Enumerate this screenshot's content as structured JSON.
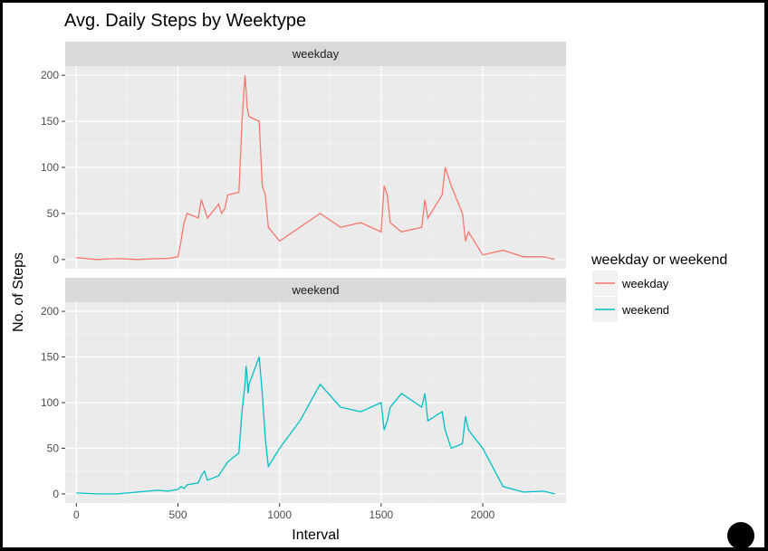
{
  "chart_data": {
    "type": "line",
    "title": "Avg. Daily Steps by Weektype",
    "xlabel": "Interval",
    "ylabel": "No. of Steps",
    "xlim": [
      -55,
      2410
    ],
    "ylim": [
      -10,
      210
    ],
    "x_ticks": [
      0,
      500,
      1000,
      1500,
      2000
    ],
    "y_ticks": [
      0,
      50,
      100,
      150,
      200
    ],
    "grid": true,
    "legend": {
      "title": "weekday or weekend",
      "placement": "right",
      "entries": [
        {
          "label": "weekday",
          "color": "#F8766D"
        },
        {
          "label": "weekend",
          "color": "#00BFC4"
        }
      ]
    },
    "facets": [
      {
        "label": "weekday",
        "color": "#F8766D",
        "x": [
          0,
          100,
          200,
          300,
          400,
          450,
          500,
          515,
          530,
          545,
          600,
          615,
          630,
          645,
          700,
          715,
          730,
          745,
          800,
          815,
          830,
          835,
          840,
          845,
          850,
          900,
          915,
          930,
          945,
          1000,
          1100,
          1200,
          1300,
          1400,
          1500,
          1515,
          1530,
          1545,
          1600,
          1700,
          1715,
          1730,
          1800,
          1815,
          1830,
          1845,
          1900,
          1915,
          1930,
          2000,
          2100,
          2200,
          2300,
          2355
        ],
        "y": [
          2,
          0,
          1,
          0,
          1,
          1,
          3,
          20,
          40,
          50,
          45,
          65,
          55,
          45,
          60,
          50,
          55,
          70,
          73,
          150,
          200,
          185,
          165,
          160,
          155,
          150,
          80,
          70,
          35,
          20,
          35,
          50,
          35,
          40,
          30,
          80,
          70,
          40,
          30,
          35,
          65,
          45,
          70,
          100,
          90,
          80,
          50,
          20,
          30,
          5,
          10,
          3,
          3,
          0
        ]
      },
      {
        "label": "weekend",
        "color": "#00BFC4",
        "x": [
          0,
          100,
          200,
          300,
          400,
          450,
          500,
          515,
          530,
          545,
          600,
          615,
          630,
          645,
          700,
          715,
          730,
          745,
          800,
          815,
          830,
          835,
          840,
          845,
          850,
          900,
          915,
          930,
          945,
          1000,
          1100,
          1200,
          1300,
          1400,
          1500,
          1515,
          1530,
          1545,
          1600,
          1700,
          1715,
          1730,
          1800,
          1815,
          1830,
          1845,
          1900,
          1915,
          1930,
          2000,
          2100,
          2200,
          2300,
          2355
        ],
        "y": [
          1,
          0,
          0,
          2,
          4,
          3,
          5,
          8,
          6,
          10,
          12,
          20,
          25,
          15,
          20,
          25,
          30,
          35,
          45,
          90,
          120,
          140,
          130,
          110,
          120,
          150,
          110,
          60,
          30,
          50,
          80,
          120,
          95,
          90,
          100,
          70,
          80,
          95,
          110,
          95,
          110,
          80,
          90,
          70,
          60,
          50,
          55,
          85,
          70,
          50,
          8,
          2,
          3,
          0
        ]
      }
    ]
  }
}
